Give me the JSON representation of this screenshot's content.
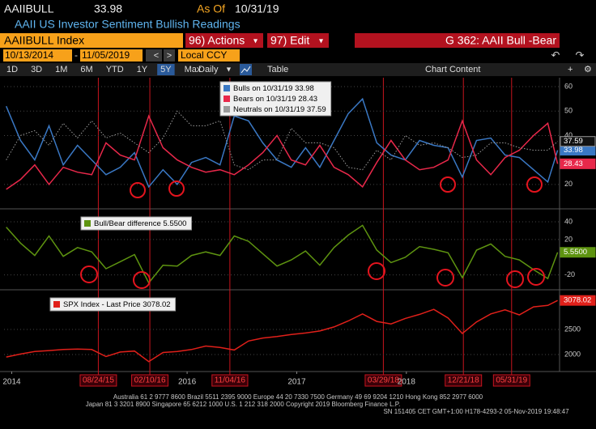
{
  "header": {
    "ticker": "AAIIBULL",
    "as_of_label": "As Of",
    "as_of_date": "10/31/19",
    "description": "AAII US Investor Sentiment Bullish Readings"
  },
  "toolbar": {
    "security": "AAIIBULL Index",
    "actions": "96) Actions",
    "edit": "97) Edit",
    "chart_name": "G 362: AAII Bull -Bear",
    "start_date": "10/13/2014",
    "end_date": "11/05/2019",
    "currency": "Local CCY",
    "ranges": [
      "1D",
      "3D",
      "1M",
      "6M",
      "YTD",
      "1Y",
      "5Y",
      "Max"
    ],
    "active_range": 6,
    "frequency": "Daily",
    "table": "Table",
    "chart_content": "Chart Content"
  },
  "footer": [
    "Australia 61 2 9777 8600 Brazil 5511 2395 9000 Europe 44 20 7330 7500 Germany 49 69 9204 1210 Hong Kong 852 2977 6000",
    "Japan 81 3 3201 8900      Singapore 65 6212 1000      U.S. 1 212 318 2000      Copyright 2019 Bloomberg Finance L.P.",
    "SN 151405 CET  GMT+1:00 H178-4293-2 05-Nov-2019 19:48:47"
  ],
  "chart_data": [
    {
      "type": "line",
      "grid": true,
      "x": [
        2014.8,
        2014.93,
        2015.06,
        2015.19,
        2015.32,
        2015.45,
        2015.58,
        2015.71,
        2015.84,
        2015.97,
        2016.1,
        2016.23,
        2016.36,
        2016.49,
        2016.62,
        2016.75,
        2016.88,
        2017.01,
        2017.14,
        2017.27,
        2017.4,
        2017.53,
        2017.66,
        2017.79,
        2017.92,
        2018.05,
        2018.18,
        2018.31,
        2018.44,
        2018.57,
        2018.7,
        2018.83,
        2018.96,
        2019.09,
        2019.22,
        2019.35,
        2019.48,
        2019.61,
        2019.74,
        2019.83
      ],
      "xlim": [
        2014.78,
        2019.84
      ],
      "ylim": [
        11,
        63
      ],
      "yticks": [
        20,
        40,
        50,
        60
      ],
      "series": [
        {
          "name": "Bulls on 10/31/19",
          "color": "#3a78c4",
          "values": [
            52,
            38,
            30,
            44,
            28,
            36,
            30,
            24,
            27,
            33,
            19,
            26,
            20,
            29,
            31,
            28,
            48,
            46,
            37,
            30,
            27,
            35,
            27,
            38,
            49,
            55,
            37,
            32,
            30,
            38,
            36,
            35,
            23,
            38,
            39,
            32,
            31,
            26,
            21,
            33.98
          ]
        },
        {
          "name": "Bears on 10/31/19",
          "color": "#e8284a",
          "values": [
            18,
            22,
            28,
            20,
            27,
            25,
            24,
            37,
            32,
            30,
            48,
            35,
            30,
            27,
            25,
            26,
            24,
            28,
            33,
            40,
            30,
            28,
            36,
            27,
            24,
            19,
            29,
            38,
            30,
            26,
            27,
            30,
            46,
            30,
            24,
            31,
            34,
            40,
            45,
            28.43
          ]
        },
        {
          "name": "Neutrals on 10/31/19",
          "color": "#9a9a9a",
          "style": "dotted",
          "values": [
            30,
            40,
            42,
            36,
            45,
            39,
            46,
            39,
            41,
            37,
            33,
            39,
            50,
            44,
            44,
            46,
            28,
            26,
            30,
            30,
            43,
            37,
            37,
            35,
            27,
            26,
            34,
            30,
            40,
            36,
            37,
            35,
            31,
            32,
            37,
            37,
            35,
            34,
            34,
            37.59
          ]
        }
      ]
    },
    {
      "type": "line",
      "grid": true,
      "x": [
        2014.8,
        2014.93,
        2015.06,
        2015.19,
        2015.32,
        2015.45,
        2015.58,
        2015.71,
        2015.84,
        2015.97,
        2016.1,
        2016.23,
        2016.36,
        2016.49,
        2016.62,
        2016.75,
        2016.88,
        2017.01,
        2017.14,
        2017.27,
        2017.4,
        2017.53,
        2017.66,
        2017.79,
        2017.92,
        2018.05,
        2018.18,
        2018.31,
        2018.44,
        2018.57,
        2018.7,
        2018.83,
        2018.96,
        2019.09,
        2019.22,
        2019.35,
        2019.48,
        2019.61,
        2019.74,
        2019.83
      ],
      "xlim": [
        2014.78,
        2019.84
      ],
      "ylim": [
        -34,
        51
      ],
      "yticks": [
        -20,
        20,
        40
      ],
      "series": [
        {
          "name": "Bull/Bear difference",
          "color": "#5e9410",
          "last_label": "5.5500",
          "values": [
            34,
            16,
            2,
            24,
            1,
            11,
            6,
            -13,
            -5,
            3,
            -29,
            -9,
            -10,
            2,
            6,
            2,
            24,
            18,
            4,
            -10,
            -3,
            7,
            -9,
            11,
            25,
            36,
            8,
            -6,
            0,
            12,
            9,
            5,
            -23,
            8,
            15,
            1,
            -3,
            -14,
            -24,
            5.55
          ]
        }
      ]
    },
    {
      "type": "line",
      "grid": true,
      "x": [
        2014.8,
        2014.93,
        2015.06,
        2015.19,
        2015.32,
        2015.45,
        2015.58,
        2015.71,
        2015.84,
        2015.97,
        2016.1,
        2016.23,
        2016.36,
        2016.49,
        2016.62,
        2016.75,
        2016.88,
        2017.01,
        2017.14,
        2017.27,
        2017.4,
        2017.53,
        2017.66,
        2017.79,
        2017.92,
        2018.05,
        2018.18,
        2018.31,
        2018.44,
        2018.57,
        2018.7,
        2018.83,
        2018.96,
        2019.09,
        2019.22,
        2019.35,
        2019.48,
        2019.61,
        2019.74,
        2019.83
      ],
      "xlim": [
        2014.78,
        2019.84
      ],
      "ylim": [
        1726,
        3226
      ],
      "yticks": [
        2000,
        2500
      ],
      "xticks": [
        {
          "value": 2014.85,
          "label": "2014"
        },
        {
          "value": 2016.45,
          "label": "2016"
        },
        {
          "value": 2017.45,
          "label": "2017"
        },
        {
          "value": 2018.45,
          "label": "2018"
        }
      ],
      "markers": [
        {
          "value": 2015.64,
          "label": "08/24/15"
        },
        {
          "value": 2016.11,
          "label": "02/10/16"
        },
        {
          "value": 2016.84,
          "label": "11/04/16"
        },
        {
          "value": 2018.24,
          "label": "03/29/18"
        },
        {
          "value": 2018.97,
          "label": "12/21/18"
        },
        {
          "value": 2019.41,
          "label": "05/31/19"
        }
      ],
      "series": [
        {
          "name": "SPX Index - Last Price",
          "color": "#e0201a",
          "values": [
            1950,
            2010,
            2060,
            2080,
            2100,
            2110,
            2100,
            1960,
            2050,
            2070,
            1860,
            2040,
            2060,
            2100,
            2170,
            2140,
            2090,
            2270,
            2330,
            2360,
            2400,
            2430,
            2470,
            2550,
            2670,
            2810,
            2660,
            2610,
            2720,
            2800,
            2900,
            2730,
            2420,
            2650,
            2810,
            2890,
            2790,
            2950,
            2980,
            3078.02
          ]
        }
      ]
    }
  ]
}
